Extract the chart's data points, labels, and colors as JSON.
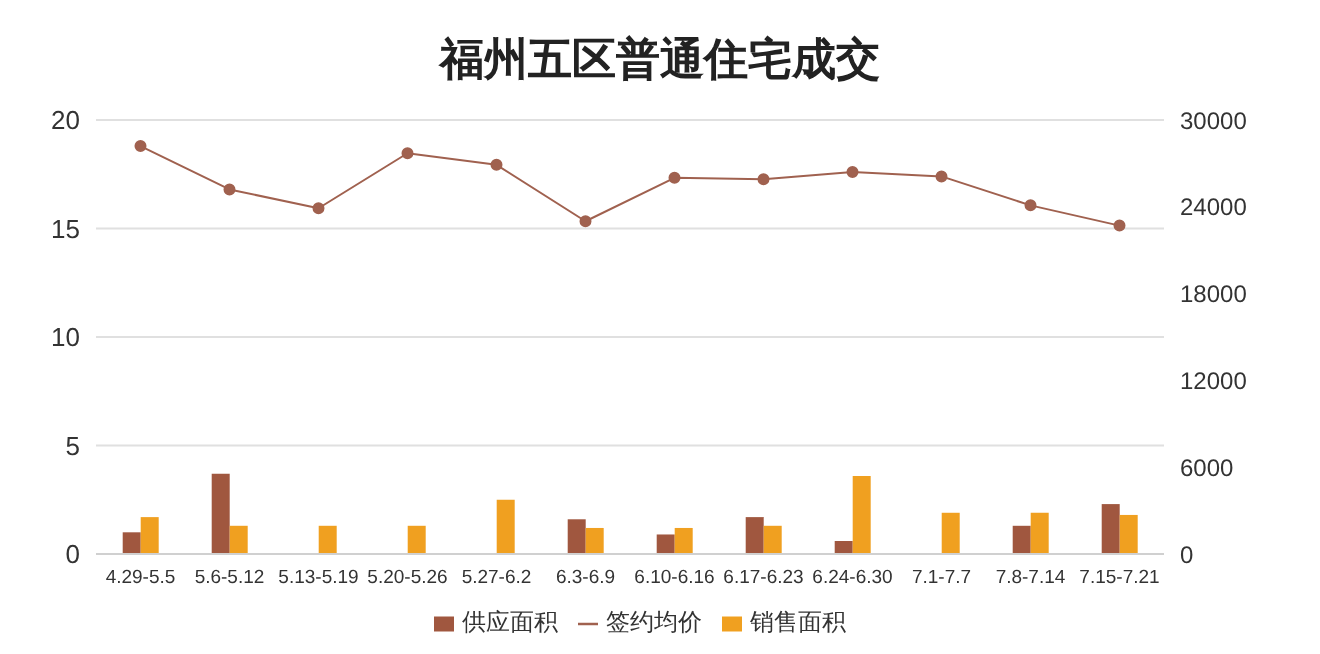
{
  "chart_data": {
    "type": "bar",
    "title": "福州五区普通住宅成交",
    "categories": [
      "4.29-5.5",
      "5.6-5.12",
      "5.13-5.19",
      "5.20-5.26",
      "5.27-6.2",
      "6.3-6.9",
      "6.10-6.16",
      "6.17-6.23",
      "6.24-6.30",
      "7.1-7.7",
      "7.8-7.14",
      "7.15-7.21"
    ],
    "series": [
      {
        "name": "供应面积",
        "color": "#a0573f",
        "values": [
          1.0,
          3.7,
          0,
          0,
          0,
          1.6,
          0.9,
          1.7,
          0.6,
          0,
          1.3,
          2.3
        ]
      },
      {
        "name": "销售面积",
        "color": "#f0a020",
        "values": [
          1.7,
          1.3,
          1.3,
          1.3,
          2.5,
          1.2,
          1.2,
          1.3,
          3.6,
          1.9,
          1.9,
          1.8
        ]
      },
      {
        "name": "签约均价",
        "type": "line",
        "axis": "y2",
        "color": "#a0614f",
        "marker": "circle",
        "values": [
          28200,
          25200,
          23900,
          27700,
          26900,
          23000,
          26000,
          25900,
          26400,
          26100,
          24100,
          22700
        ]
      }
    ],
    "ylim": [
      0,
      20
    ],
    "yticks": [
      0,
      5,
      10,
      15,
      20
    ],
    "y2lim": [
      0,
      30000
    ],
    "y2ticks": [
      0,
      6000,
      12000,
      18000,
      24000,
      30000
    ],
    "grid": "y",
    "legend": "bottom"
  }
}
